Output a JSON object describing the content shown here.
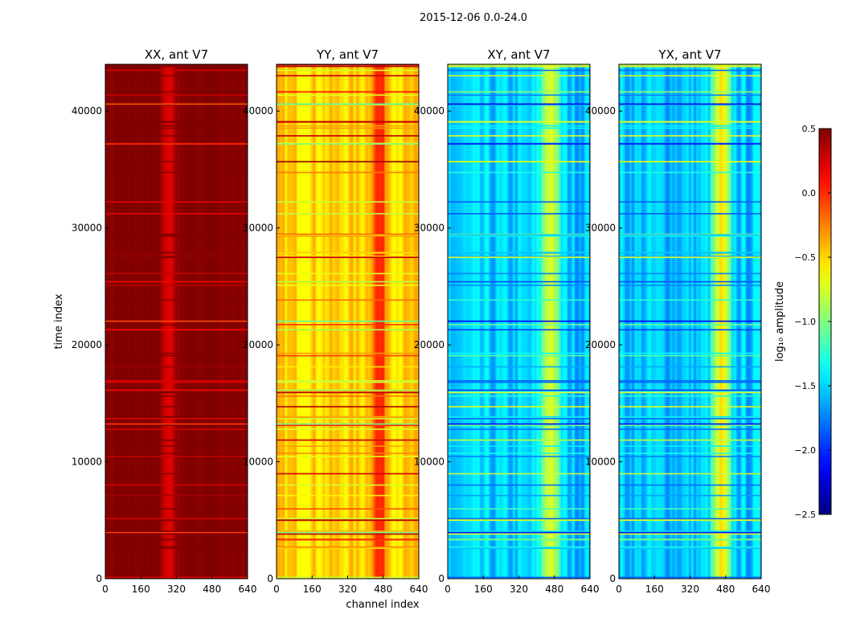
{
  "figure": {
    "suptitle": "2015-12-06 0.0-24.0",
    "xlabel": "channel index",
    "ylabel": "time index"
  },
  "chart_data": {
    "type": "heatmap",
    "colormap": "jet",
    "x_range": [
      0,
      640
    ],
    "y_range": [
      0,
      44000
    ],
    "x_ticks": [
      0,
      160,
      320,
      480,
      640
    ],
    "y_ticks": [
      0,
      10000,
      20000,
      30000,
      40000
    ],
    "panels": [
      {
        "title": "XX, ant V7",
        "base": 0.5,
        "bump_center": 288,
        "bump_width": 28,
        "bump_amp": -0.35,
        "noise": 0.03
      },
      {
        "title": "YY, ant V7",
        "base": -0.5,
        "bump_center": 460,
        "bump_width": 40,
        "bump_amp": 0.5,
        "noise": 0.08
      },
      {
        "title": "XY, ant V7",
        "base": -1.55,
        "bump_center": 460,
        "bump_width": 40,
        "bump_amp": 0.9,
        "noise": 0.1
      },
      {
        "title": "YX, ant V7",
        "base": -1.55,
        "bump_center": 460,
        "bump_width": 40,
        "bump_amp": 0.9,
        "noise": 0.1
      }
    ],
    "colorbar": {
      "label": "log₁₀ amplitude",
      "vmin": -2.5,
      "vmax": 0.5,
      "ticks": [
        "0.5",
        "0.0",
        "−0.5",
        "−1.0",
        "−1.5",
        "−2.0",
        "−2.5"
      ]
    },
    "x_tick_labels": [
      "0",
      "160",
      "320",
      "480",
      "640"
    ],
    "y_tick_labels": [
      "0",
      "10000",
      "20000",
      "30000",
      "40000"
    ]
  }
}
